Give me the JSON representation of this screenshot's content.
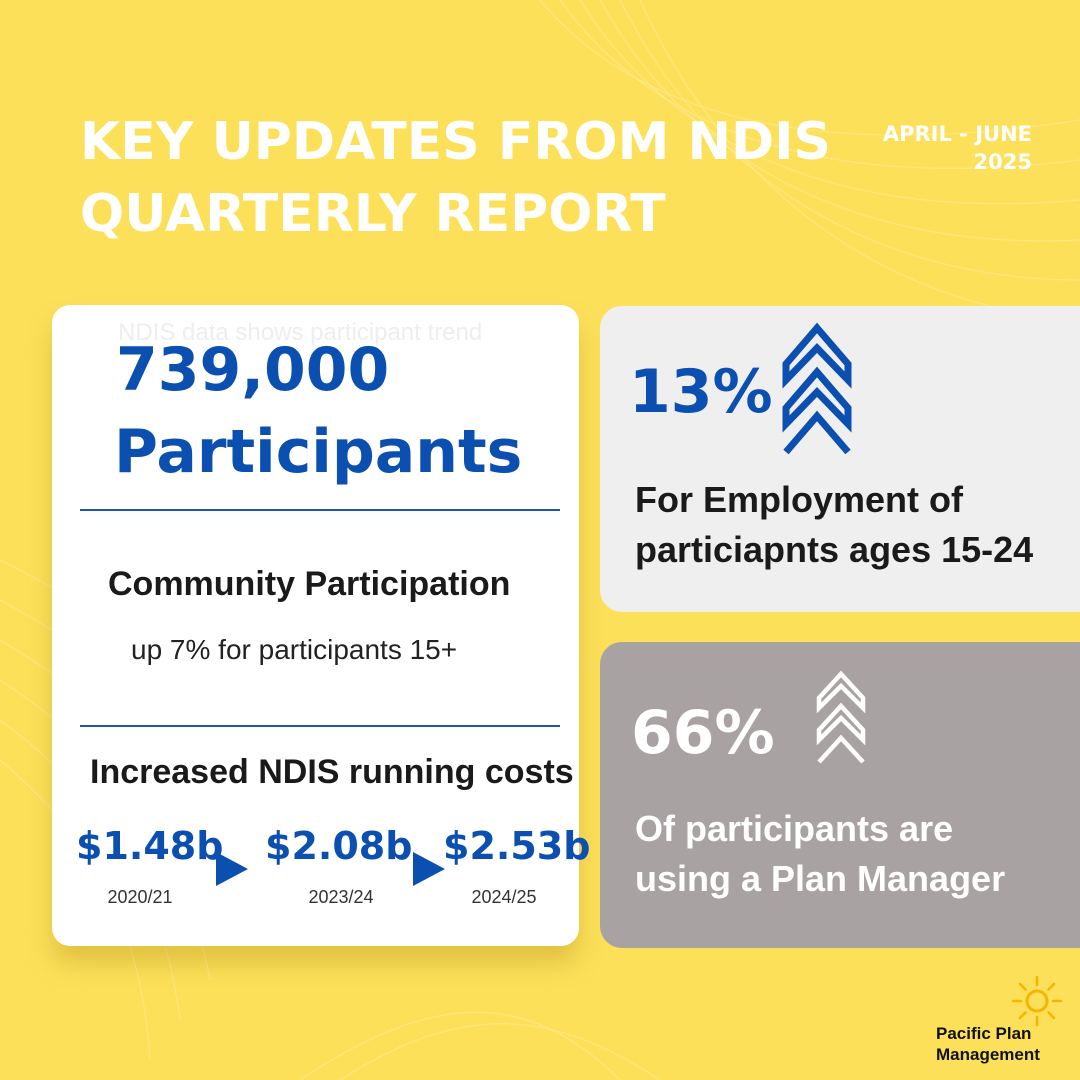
{
  "header": {
    "title_line1": "KEY UPDATES FROM NDIS",
    "title_line2": "QUARTERLY REPORT",
    "date_range": "APRIL - JUNE 2025"
  },
  "participants_card": {
    "ghost_text": "NDIS data shows participant trend",
    "count": "739,000",
    "count_label": "Participants",
    "community_title": "Community Participation",
    "community_subtitle": "up 7% for participants 15+",
    "costs_title": "Increased NDIS running costs",
    "costs": [
      {
        "value": "$1.48b",
        "year": "2020/21"
      },
      {
        "value": "$2.08b",
        "year": "2023/24"
      },
      {
        "value": "$2.53b",
        "year": "2024/25"
      }
    ]
  },
  "employment_card": {
    "percent": "13%",
    "description_line1": "For Employment of",
    "description_line2": "particiapnts ages 15-24",
    "icon": "triple-chevron-up-icon"
  },
  "plan_manager_card": {
    "percent": "66%",
    "description_line1": "Of participants are",
    "description_line2": "using a Plan Manager",
    "icon": "triple-chevron-up-icon"
  },
  "logo": {
    "line1": "Pacific Plan",
    "line2": "Management",
    "icon": "sun-icon"
  },
  "colors": {
    "background": "#fde05a",
    "accent_blue": "#0b4fb0",
    "card_light": "#efefef",
    "card_gray": "#a9a2a2",
    "sun": "#f7b500"
  }
}
